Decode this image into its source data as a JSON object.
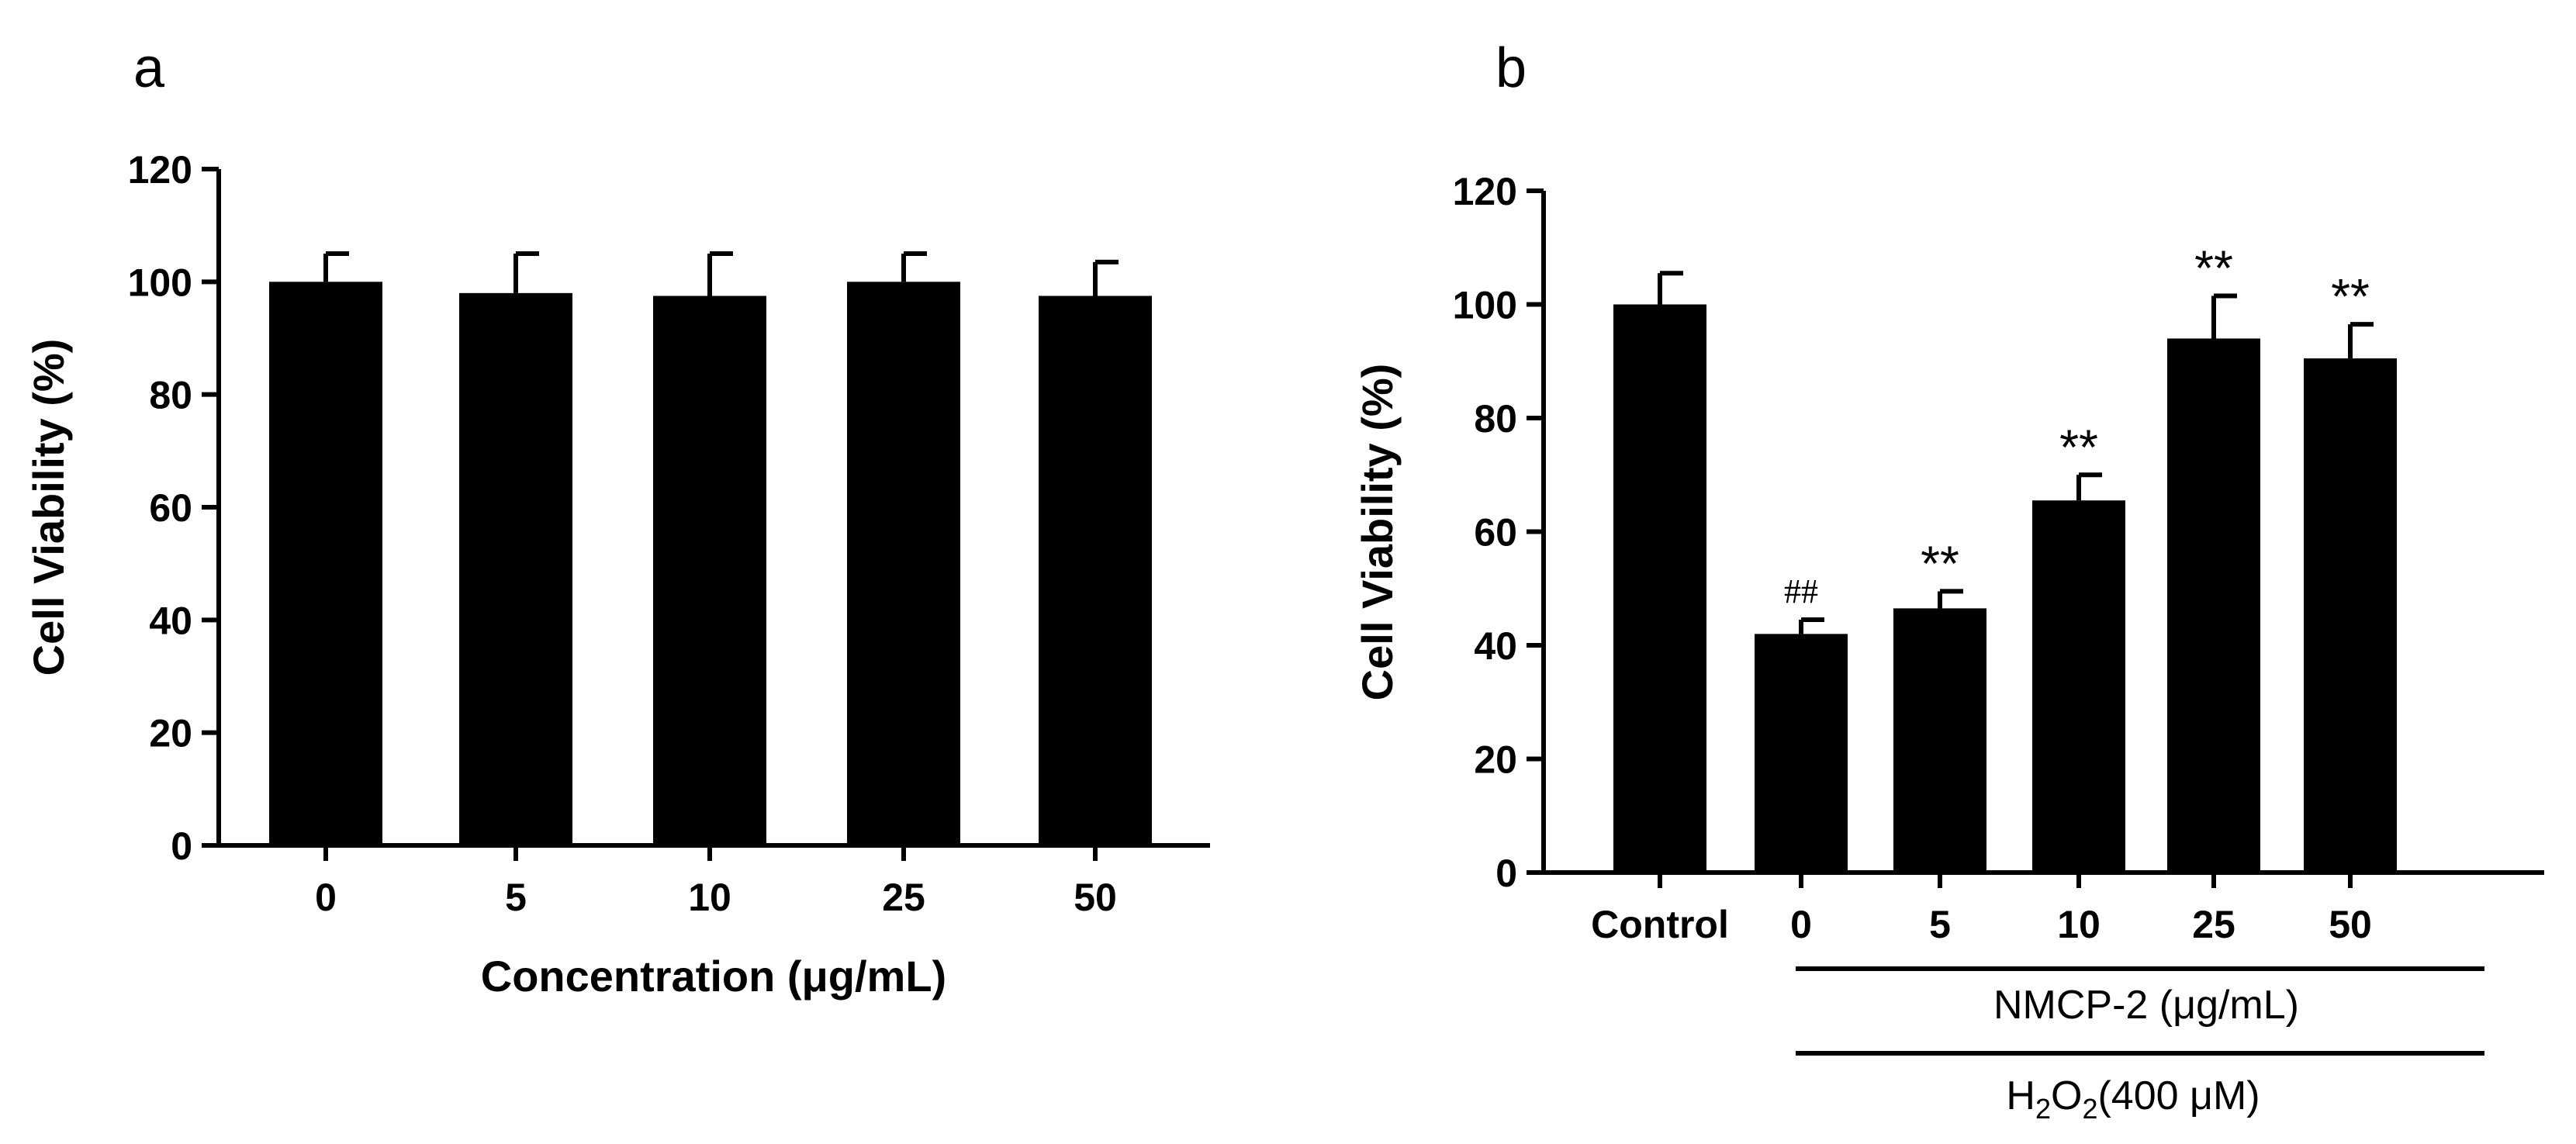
{
  "panels": {
    "a": {
      "letter": "a"
    },
    "b": {
      "letter": "b"
    }
  },
  "chart_data": [
    {
      "type": "bar",
      "panel": "a",
      "categories": [
        "0",
        "5",
        "10",
        "25",
        "50"
      ],
      "values": [
        100,
        98,
        97.5,
        100,
        97.5
      ],
      "errors": [
        5,
        7,
        7.5,
        5,
        6
      ],
      "xlabel": "Concentration (μg/mL)",
      "ylabel": "Cell Viability (%)",
      "ylim": [
        0,
        120
      ],
      "yticks": [
        "0",
        "20",
        "40",
        "60",
        "80",
        "100",
        "120"
      ],
      "bar_color": "#000000"
    },
    {
      "type": "bar",
      "panel": "b",
      "categories": [
        "Control",
        "0",
        "5",
        "10",
        "25",
        "50"
      ],
      "values": [
        100,
        42,
        46.5,
        65.5,
        94,
        90.5
      ],
      "errors": [
        5.5,
        2.5,
        3,
        4.5,
        7.5,
        6
      ],
      "annotations": [
        "",
        "##",
        "**",
        "**",
        "**",
        "**"
      ],
      "ylabel": "Cell Viability (%)",
      "ylim": [
        0,
        120
      ],
      "yticks": [
        "0",
        "20",
        "40",
        "60",
        "80",
        "100",
        "120"
      ],
      "group_label_1": "NMCP-2 (μg/mL)",
      "group_label_2_main": "H",
      "group_label_2_sub1": "2",
      "group_label_2_mid": "O",
      "group_label_2_sub2": "2",
      "group_label_2_tail": "(400 μM)",
      "bar_color": "#000000"
    }
  ]
}
